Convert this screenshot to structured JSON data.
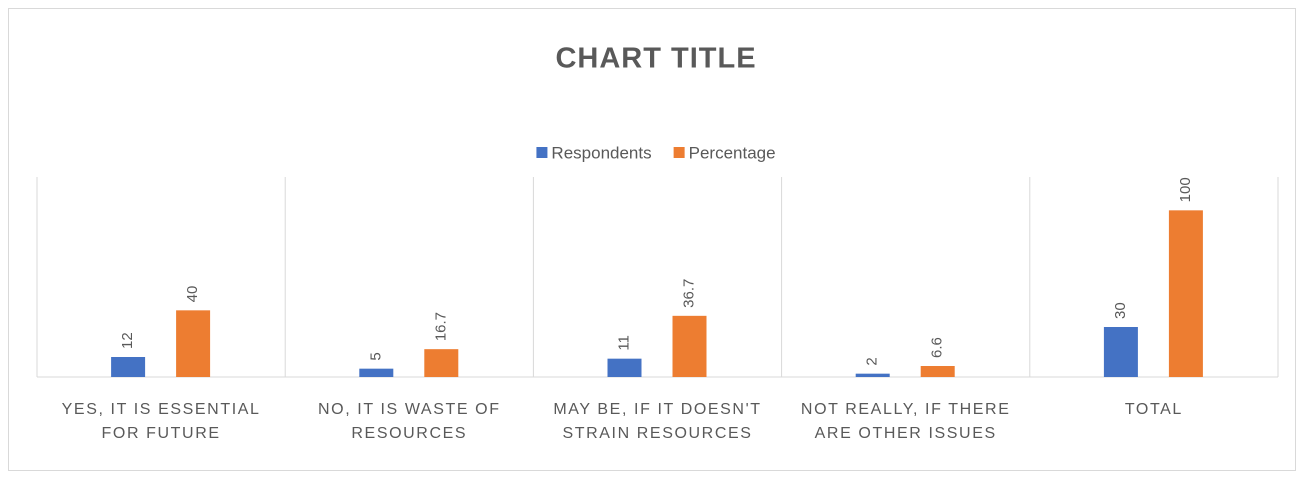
{
  "chart_data": {
    "type": "bar",
    "title": "CHART TITLE",
    "categories": [
      "YES, IT IS ESSENTIAL FOR FUTURE",
      "NO, IT IS WASTE OF RESOURCES",
      "MAY BE, IF IT DOESN'T STRAIN RESOURCES",
      "NOT REALLY, IF THERE ARE OTHER ISSUES",
      "TOTAL"
    ],
    "series": [
      {
        "name": "Respondents",
        "color": "#4472c4",
        "values": [
          12,
          5,
          11,
          2,
          30
        ]
      },
      {
        "name": "Percentage",
        "color": "#ed7d31",
        "values": [
          40,
          16.7,
          36.7,
          6.6,
          100
        ]
      }
    ],
    "ylim": [
      0,
      120
    ],
    "legend": "top"
  }
}
